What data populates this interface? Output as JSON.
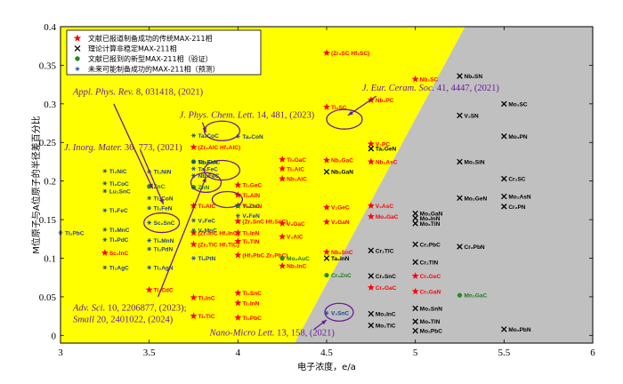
{
  "chart_data": {
    "type": "scatter",
    "xlabel": "电子浓度，e/a",
    "ylabel": "M位原子与A位原子的半径差百分比",
    "xlim": [
      3,
      6
    ],
    "ylim": [
      -0.01,
      0.4
    ],
    "x_ticks": [
      "3",
      "3.5",
      "4",
      "4.5",
      "5",
      "5.5",
      "6"
    ],
    "x_tick_values": [
      3,
      3.5,
      4,
      4.5,
      5,
      5.5,
      6
    ],
    "y_ticks": [
      "0",
      "0.05",
      "0.1",
      "0.15",
      "0.2",
      "0.25",
      "0.3",
      "0.35",
      "0.4"
    ],
    "y_tick_values": [
      0,
      0.05,
      0.1,
      0.15,
      0.2,
      0.25,
      0.3,
      0.35,
      0.4
    ],
    "regions": {
      "yellow_color": "#ffff00",
      "gray_color": "#c0c0c0",
      "boundary": [
        [
          4.32,
          -0.01
        ],
        [
          5.28,
          0.4
        ]
      ]
    },
    "legend": [
      {
        "marker": "star",
        "color": "#ff0000",
        "label": "文献已报道制备成功的传统MAX-211相"
      },
      {
        "marker": "x",
        "color": "#000000",
        "label": "理论计算非稳定MAX-211相"
      },
      {
        "marker": "dot",
        "color": "#228b22",
        "label": "文献已报到的新型MAX-211相（验证）"
      },
      {
        "marker": "asterisk",
        "color": "#1f4e9c",
        "label": "未来可能制备成功的MAX-211相（预测）"
      }
    ],
    "series": [
      {
        "marker": "star",
        "color": "#ff0000",
        "points": [
          {
            "x": 4.5,
            "y": 0.366,
            "label": "(Zr₂SC Hf₂SC)"
          },
          {
            "x": 5.0,
            "y": 0.332,
            "label": "Nb₂SC"
          },
          {
            "x": 4.5,
            "y": 0.296,
            "label": "Ti₂SC"
          },
          {
            "x": 4.75,
            "y": 0.305,
            "label": "Nb₂PC"
          },
          {
            "x": 4.25,
            "y": 0.228,
            "label": "Ti₂GaC"
          },
          {
            "x": 4.25,
            "y": 0.216,
            "label": "Ti₂AlC"
          },
          {
            "x": 4.25,
            "y": 0.203,
            "label": "Nb₂AlC"
          },
          {
            "x": 4.5,
            "y": 0.227,
            "label": "Nb₂GaC"
          },
          {
            "x": 4.75,
            "y": 0.248,
            "label": "V₂PC"
          },
          {
            "x": 4.75,
            "y": 0.225,
            "label": "Nb₂AsC"
          },
          {
            "x": 4.75,
            "y": 0.168,
            "label": "V₂AsC"
          },
          {
            "x": 4.75,
            "y": 0.154,
            "label": "Mo₂GaC"
          },
          {
            "x": 4.5,
            "y": 0.166,
            "label": "V₂GeC"
          },
          {
            "x": 4.5,
            "y": 0.147,
            "label": "V₂GaN"
          },
          {
            "x": 4.25,
            "y": 0.145,
            "label": "V₂GaC"
          },
          {
            "x": 4.25,
            "y": 0.128,
            "label": "V₂AlC"
          },
          {
            "x": 4.25,
            "y": 0.09,
            "label": "Nb₂InC"
          },
          {
            "x": 4.5,
            "y": 0.108,
            "label": "Nb₂SnC"
          },
          {
            "x": 4.0,
            "y": 0.195,
            "label": "Ti₂GeC"
          },
          {
            "x": 4.0,
            "y": 0.182,
            "label": "Ti₂AlN"
          },
          {
            "x": 4.0,
            "y": 0.168,
            "label": "Ti₂GaN"
          },
          {
            "x": 4.0,
            "y": 0.148,
            "label": "(Zr₂SnC Hf₂SnC)"
          },
          {
            "x": 4.0,
            "y": 0.133,
            "label": "Ti₂InN"
          },
          {
            "x": 4.0,
            "y": 0.122,
            "label": "Ti₂TlN"
          },
          {
            "x": 4.0,
            "y": 0.104,
            "label": "(Hf₂PbC Zr₂PbC)"
          },
          {
            "x": 4.0,
            "y": 0.055,
            "label": "Ti₂SnC"
          },
          {
            "x": 4.0,
            "y": 0.042,
            "label": "Ti₂InN"
          },
          {
            "x": 4.0,
            "y": 0.023,
            "label": "Ti₂PbC"
          },
          {
            "x": 3.75,
            "y": 0.168,
            "label": "Ti₂AlC"
          },
          {
            "x": 3.75,
            "y": 0.133,
            "label": "(Zr₂InC Hf₂InC)"
          },
          {
            "x": 3.75,
            "y": 0.118,
            "label": "(Zr₂TlC Hf₂TlC)"
          },
          {
            "x": 3.75,
            "y": 0.244,
            "label": "(Zr₂AlC Hf₂AlC)"
          },
          {
            "x": 3.75,
            "y": 0.049,
            "label": "Ti₂InC"
          },
          {
            "x": 3.75,
            "y": 0.025,
            "label": "Ti₂TlC"
          },
          {
            "x": 3.5,
            "y": 0.059,
            "label": "Ti₂CdC"
          },
          {
            "x": 3.25,
            "y": 0.107,
            "label": "Sc₂InC"
          },
          {
            "x": 5.0,
            "y": 0.077,
            "label": "Cr₂GeC"
          },
          {
            "x": 5.0,
            "y": 0.057,
            "label": "Cr₂GaN"
          },
          {
            "x": 4.75,
            "y": 0.062,
            "label": "Cr₂GaC"
          }
        ]
      },
      {
        "marker": "x",
        "color": "#000000",
        "points": [
          {
            "x": 5.25,
            "y": 0.336,
            "label": "Nb₂SN"
          },
          {
            "x": 5.25,
            "y": 0.285,
            "label": "V₂SN"
          },
          {
            "x": 5.5,
            "y": 0.3,
            "label": "Mo₂SC"
          },
          {
            "x": 5.5,
            "y": 0.258,
            "label": "Mo₂PN"
          },
          {
            "x": 5.25,
            "y": 0.225,
            "label": "Mo₂SiN"
          },
          {
            "x": 5.5,
            "y": 0.203,
            "label": "Cr₂SC"
          },
          {
            "x": 5.5,
            "y": 0.18,
            "label": "Mo₂AsN"
          },
          {
            "x": 5.5,
            "y": 0.167,
            "label": "Cr₂PN"
          },
          {
            "x": 5.25,
            "y": 0.178,
            "label": "Mo₂GeN"
          },
          {
            "x": 4.75,
            "y": 0.242,
            "label": "Ta₂GeN"
          },
          {
            "x": 4.5,
            "y": 0.212,
            "label": "Nb₂GaN"
          },
          {
            "x": 5.0,
            "y": 0.158,
            "label": "Mo₂GaN"
          },
          {
            "x": 5.0,
            "y": 0.152,
            "label": "Mo₂InN"
          },
          {
            "x": 5.0,
            "y": 0.145,
            "label": "Mo₂TlN"
          },
          {
            "x": 5.25,
            "y": 0.115,
            "label": "Cr₂PbN"
          },
          {
            "x": 4.5,
            "y": 0.1,
            "label": "Ta₂InN"
          },
          {
            "x": 4.75,
            "y": 0.11,
            "label": "Cr₂TlC"
          },
          {
            "x": 5.0,
            "y": 0.118,
            "label": "Cr₂PbC"
          },
          {
            "x": 5.0,
            "y": 0.095,
            "label": "Cr₂TlN"
          },
          {
            "x": 4.75,
            "y": 0.077,
            "label": "Cr₂SnC"
          },
          {
            "x": 4.75,
            "y": 0.028,
            "label": "Mo₂InC"
          },
          {
            "x": 4.75,
            "y": 0.013,
            "label": "Mo₂TlC"
          },
          {
            "x": 5.0,
            "y": 0.035,
            "label": "Mo₂SnN"
          },
          {
            "x": 5.0,
            "y": 0.018,
            "label": "Mo₂TlN"
          },
          {
            "x": 5.0,
            "y": 0.006,
            "label": "Mo₂PbC"
          },
          {
            "x": 5.5,
            "y": 0.008,
            "label": "Mo₂PbN"
          }
        ]
      },
      {
        "marker": "dot",
        "color": "#228b22",
        "points": [
          {
            "x": 3.5,
            "y": 0.193,
            "label": "ZnC"
          },
          {
            "x": 3.75,
            "y": 0.192,
            "label": "ZnN"
          },
          {
            "x": 3.75,
            "y": 0.225,
            "label": "Nb₂CuC"
          },
          {
            "x": 4.0,
            "y": 0.168,
            "label": "V₂ZnC"
          },
          {
            "x": 4.25,
            "y": 0.1,
            "label": "Mo₂AuC"
          },
          {
            "x": 4.5,
            "y": 0.078,
            "label": "Cr₂ZnC"
          },
          {
            "x": 5.25,
            "y": 0.052,
            "label": "Mn₂GaC"
          }
        ]
      },
      {
        "marker": "asterisk",
        "color": "#1f4e9c",
        "points": [
          {
            "x": 4.0,
            "y": 0.258,
            "label": "Ta₂CoN"
          },
          {
            "x": 3.75,
            "y": 0.259,
            "label": "Ta₂CoC"
          },
          {
            "x": 3.75,
            "y": 0.225,
            "label": "Ta₂FeN"
          },
          {
            "x": 3.75,
            "y": 0.216,
            "label": "Ta₂FeC"
          },
          {
            "x": 3.75,
            "y": 0.207,
            "label": "Nb₂FeC"
          },
          {
            "x": 3.5,
            "y": 0.212,
            "label": "Ti₂NiN"
          },
          {
            "x": 3.25,
            "y": 0.213,
            "label": "Ti₂NiC"
          },
          {
            "x": 3.25,
            "y": 0.197,
            "label": "Ti₂CoC"
          },
          {
            "x": 3.25,
            "y": 0.187,
            "label": "Lu₂SnC"
          },
          {
            "x": 3.5,
            "y": 0.178,
            "label": "Ti₂CoN"
          },
          {
            "x": 3.5,
            "y": 0.165,
            "label": "Ti₂FeN"
          },
          {
            "x": 3.25,
            "y": 0.162,
            "label": "Ti₂FeC"
          },
          {
            "x": 3.25,
            "y": 0.137,
            "label": "Ti₂MnC"
          },
          {
            "x": 3.5,
            "y": 0.146,
            "label": "Sc₂SnC"
          },
          {
            "x": 3.5,
            "y": 0.123,
            "label": "Ti₂MnN"
          },
          {
            "x": 3.5,
            "y": 0.112,
            "label": "Ti₂PdN"
          },
          {
            "x": 3.25,
            "y": 0.124,
            "label": "Ti₂PdC"
          },
          {
            "x": 3.75,
            "y": 0.149,
            "label": "V₂FeC"
          },
          {
            "x": 3.75,
            "y": 0.136,
            "label": "V₂MnC"
          },
          {
            "x": 3.75,
            "y": 0.1,
            "label": "Ti₂PtN"
          },
          {
            "x": 3.25,
            "y": 0.088,
            "label": "Ti₂AgC"
          },
          {
            "x": 3.5,
            "y": 0.088,
            "label": "Ti₂AgN"
          },
          {
            "x": 4.0,
            "y": 0.155,
            "label": "V₂FeN"
          },
          {
            "x": 3.0,
            "y": 0.133,
            "label": "Ti₂PbC"
          },
          {
            "x": 4.5,
            "y": 0.029,
            "label": "V₂SnC"
          }
        ]
      }
    ],
    "annotations": [
      {
        "text": "Appl. Phys. Rev.",
        "text2": " 8, 031418, (2021)",
        "x": 3.07,
        "y": 0.312
      },
      {
        "text": "J. Phys. Chem. Lett.",
        "text2": " 14, 481, (2023)",
        "x": 3.67,
        "y": 0.282
      },
      {
        "text": "J. Eur. Ceram. Soc.",
        "text2": " 41, 4447, (2021)",
        "x": 4.7,
        "y": 0.317
      },
      {
        "text": "J. Inorg. Mater.",
        "text2": " 36, 773, (2021)",
        "x": 3.02,
        "y": 0.24
      },
      {
        "text": "Adv. Sci.",
        "text2": " 10, 2206877, (2023);",
        "x": 3.07,
        "y": 0.032
      },
      {
        "text": "Small",
        "text2": " 20, 2401022, (2024)",
        "x": 3.07,
        "y": 0.017
      },
      {
        "text": "Nano-Micro Lett.",
        "text2": " 13, 158, (2021)",
        "x": 3.84,
        "y": 0.0
      }
    ]
  }
}
